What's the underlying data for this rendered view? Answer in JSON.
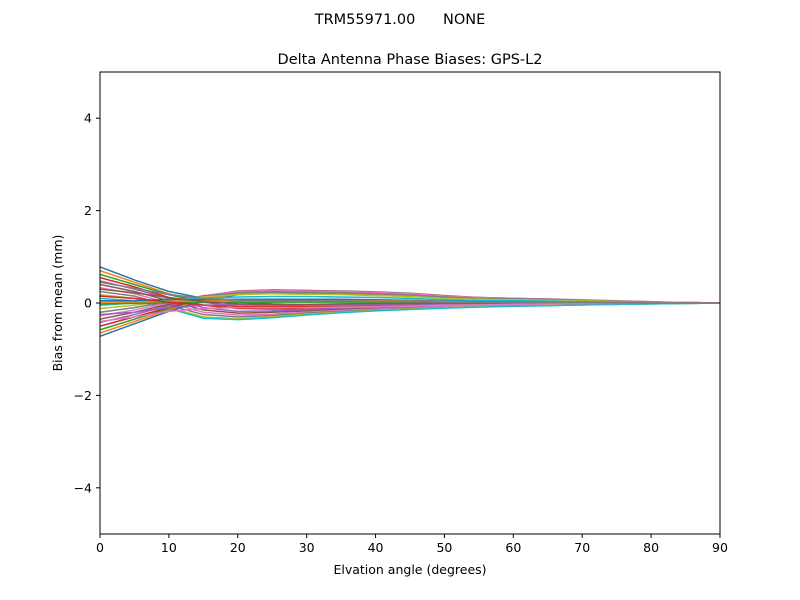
{
  "figure": {
    "suptitle": "TRM55971.00      NONE"
  },
  "chart_data": {
    "type": "line",
    "title": "Delta Antenna Phase Biases: GPS-L2",
    "xlabel": "Elvation angle (degrees)",
    "ylabel": "Bias from mean (mm)",
    "xlim": [
      0,
      90
    ],
    "ylim": [
      -5,
      5
    ],
    "xticks": [
      0,
      10,
      20,
      30,
      40,
      50,
      60,
      70,
      80,
      90
    ],
    "xtick_labels": [
      "0",
      "10",
      "20",
      "30",
      "40",
      "50",
      "60",
      "70",
      "80",
      "90"
    ],
    "yticks": [
      -4,
      -2,
      0,
      2,
      4
    ],
    "ytick_labels": [
      "−4",
      "−2",
      "0",
      "2",
      "4"
    ],
    "grid": false,
    "legend": "none",
    "x": [
      0,
      5,
      10,
      15,
      20,
      25,
      30,
      35,
      40,
      45,
      50,
      55,
      60,
      65,
      70,
      75,
      80,
      85,
      90
    ],
    "colors": [
      "#1f77b4",
      "#ff7f0e",
      "#2ca02c",
      "#d62728",
      "#9467bd",
      "#8c564b",
      "#e377c2",
      "#7f7f7f",
      "#bcbd22",
      "#17becf"
    ],
    "series": [
      {
        "values": [
          0.78,
          0.5,
          0.25,
          0.1,
          0.02,
          -0.02,
          -0.04,
          -0.03,
          -0.02,
          -0.01,
          -0.01,
          0,
          0,
          0,
          0,
          0,
          0,
          0,
          0
        ]
      },
      {
        "values": [
          0.7,
          0.45,
          0.2,
          0.05,
          -0.03,
          -0.06,
          -0.07,
          -0.06,
          -0.05,
          -0.04,
          -0.03,
          -0.02,
          -0.02,
          -0.01,
          -0.01,
          0,
          0,
          0,
          0
        ]
      },
      {
        "values": [
          0.62,
          0.4,
          0.18,
          0.02,
          -0.08,
          -0.1,
          -0.1,
          -0.08,
          -0.06,
          -0.05,
          -0.04,
          -0.03,
          -0.02,
          -0.02,
          -0.01,
          -0.01,
          0,
          0,
          0
        ]
      },
      {
        "values": [
          0.55,
          0.35,
          0.12,
          -0.05,
          -0.12,
          -0.13,
          -0.12,
          -0.1,
          -0.08,
          -0.06,
          -0.05,
          -0.04,
          -0.03,
          -0.02,
          -0.01,
          -0.01,
          0,
          0,
          0
        ]
      },
      {
        "values": [
          0.48,
          0.3,
          0.1,
          -0.1,
          -0.18,
          -0.17,
          -0.14,
          -0.12,
          -0.1,
          -0.08,
          -0.06,
          -0.05,
          -0.04,
          -0.03,
          -0.02,
          -0.01,
          -0.01,
          0,
          0
        ]
      },
      {
        "values": [
          0.4,
          0.25,
          0.05,
          -0.15,
          -0.22,
          -0.2,
          -0.17,
          -0.14,
          -0.12,
          -0.1,
          -0.07,
          -0.06,
          -0.05,
          -0.04,
          -0.03,
          -0.02,
          -0.01,
          0,
          0
        ]
      },
      {
        "values": [
          0.33,
          0.2,
          0.0,
          -0.2,
          -0.26,
          -0.24,
          -0.2,
          -0.16,
          -0.13,
          -0.11,
          -0.08,
          -0.07,
          -0.06,
          -0.05,
          -0.03,
          -0.02,
          -0.01,
          0,
          0
        ]
      },
      {
        "values": [
          0.25,
          0.15,
          -0.05,
          -0.25,
          -0.3,
          -0.27,
          -0.22,
          -0.18,
          -0.15,
          -0.12,
          -0.1,
          -0.08,
          -0.06,
          -0.05,
          -0.04,
          -0.03,
          -0.02,
          -0.01,
          0
        ]
      },
      {
        "values": [
          0.18,
          0.1,
          -0.1,
          -0.3,
          -0.34,
          -0.3,
          -0.24,
          -0.2,
          -0.16,
          -0.13,
          -0.1,
          -0.08,
          -0.07,
          -0.05,
          -0.04,
          -0.03,
          -0.02,
          -0.01,
          0
        ]
      },
      {
        "values": [
          0.1,
          0.05,
          -0.12,
          -0.33,
          -0.36,
          -0.32,
          -0.26,
          -0.21,
          -0.17,
          -0.14,
          -0.11,
          -0.09,
          -0.07,
          -0.06,
          -0.04,
          -0.03,
          -0.02,
          -0.01,
          0
        ]
      },
      {
        "values": [
          -0.72,
          -0.45,
          -0.18,
          0.05,
          0.18,
          0.22,
          0.21,
          0.19,
          0.17,
          0.14,
          0.11,
          0.08,
          0.06,
          0.04,
          0.03,
          0.02,
          0.01,
          0,
          0
        ]
      },
      {
        "values": [
          -0.65,
          -0.4,
          -0.15,
          0.08,
          0.2,
          0.24,
          0.23,
          0.21,
          0.19,
          0.16,
          0.12,
          0.09,
          0.07,
          0.05,
          0.03,
          0.02,
          0.01,
          0,
          0
        ]
      },
      {
        "values": [
          -0.58,
          -0.35,
          -0.12,
          0.1,
          0.22,
          0.26,
          0.25,
          0.23,
          0.21,
          0.18,
          0.13,
          0.1,
          0.08,
          0.06,
          0.04,
          0.02,
          0.01,
          0,
          0
        ]
      },
      {
        "values": [
          -0.5,
          -0.3,
          -0.1,
          0.12,
          0.24,
          0.27,
          0.26,
          0.24,
          0.22,
          0.19,
          0.14,
          0.11,
          0.09,
          0.07,
          0.05,
          0.03,
          0.02,
          0.01,
          0
        ]
      },
      {
        "values": [
          -0.42,
          -0.25,
          -0.06,
          0.14,
          0.25,
          0.28,
          0.27,
          0.25,
          0.23,
          0.2,
          0.15,
          0.12,
          0.1,
          0.08,
          0.05,
          0.03,
          0.02,
          0.01,
          0
        ]
      },
      {
        "values": [
          -0.35,
          -0.2,
          -0.03,
          0.15,
          0.26,
          0.28,
          0.27,
          0.26,
          0.24,
          0.21,
          0.16,
          0.12,
          0.1,
          0.08,
          0.06,
          0.04,
          0.02,
          0.01,
          0
        ]
      },
      {
        "values": [
          -0.28,
          -0.15,
          0.0,
          0.16,
          0.25,
          0.27,
          0.26,
          0.25,
          0.23,
          0.2,
          0.15,
          0.12,
          0.1,
          0.09,
          0.07,
          0.05,
          0.03,
          0.01,
          0
        ]
      },
      {
        "values": [
          -0.2,
          -0.1,
          0.03,
          0.15,
          0.22,
          0.24,
          0.23,
          0.22,
          0.2,
          0.17,
          0.13,
          0.1,
          0.09,
          0.08,
          0.06,
          0.04,
          0.02,
          0.01,
          0
        ]
      },
      {
        "values": [
          -0.12,
          -0.05,
          0.05,
          0.13,
          0.18,
          0.2,
          0.19,
          0.18,
          0.16,
          0.14,
          0.1,
          0.08,
          0.07,
          0.06,
          0.05,
          0.03,
          0.02,
          0.01,
          0
        ]
      },
      {
        "values": [
          -0.05,
          0.0,
          0.07,
          0.1,
          0.13,
          0.14,
          0.14,
          0.13,
          0.12,
          0.1,
          0.07,
          0.05,
          0.05,
          0.04,
          0.03,
          0.02,
          0.01,
          0,
          0
        ]
      },
      {
        "values": [
          0.05,
          0.05,
          0.08,
          0.07,
          0.08,
          0.08,
          0.08,
          0.08,
          0.07,
          0.06,
          0.04,
          0.03,
          0.03,
          0.02,
          0.02,
          0.01,
          0.01,
          0,
          0
        ]
      },
      {
        "values": [
          0.02,
          0.02,
          0.04,
          0.04,
          0.05,
          0.05,
          0.05,
          0.05,
          0.05,
          0.04,
          0.03,
          0.02,
          0.02,
          0.02,
          0.01,
          0.01,
          0,
          0,
          0
        ]
      },
      {
        "values": [
          -0.02,
          -0.01,
          0.0,
          0.01,
          0.01,
          0.02,
          0.02,
          0.02,
          0.02,
          0.02,
          0.01,
          0.01,
          0.01,
          0.01,
          0,
          0,
          0,
          0,
          0
        ]
      },
      {
        "values": [
          0.15,
          0.1,
          0.02,
          -0.04,
          -0.07,
          -0.08,
          -0.07,
          -0.06,
          -0.05,
          -0.04,
          -0.03,
          -0.02,
          -0.02,
          -0.01,
          -0.01,
          0,
          0,
          0,
          0
        ]
      },
      {
        "values": [
          -0.25,
          -0.2,
          -0.1,
          -0.05,
          -0.03,
          -0.04,
          -0.05,
          -0.05,
          -0.04,
          -0.04,
          -0.03,
          -0.02,
          -0.02,
          -0.01,
          -0.01,
          0,
          0,
          0,
          0
        ]
      },
      {
        "values": [
          0.3,
          0.22,
          0.12,
          0.03,
          -0.02,
          -0.03,
          -0.03,
          -0.02,
          -0.01,
          -0.01,
          0,
          0,
          0,
          0,
          0,
          0,
          0,
          0,
          0
        ]
      },
      {
        "values": [
          -0.4,
          -0.3,
          -0.18,
          -0.12,
          -0.1,
          -0.1,
          -0.1,
          -0.09,
          -0.08,
          -0.07,
          -0.05,
          -0.04,
          -0.03,
          -0.02,
          -0.01,
          -0.01,
          0,
          0,
          0
        ]
      },
      {
        "values": [
          0.45,
          0.32,
          0.18,
          0.1,
          0.06,
          0.05,
          0.05,
          0.05,
          0.04,
          0.03,
          0.02,
          0.02,
          0.01,
          0.01,
          0.01,
          0,
          0,
          0,
          0
        ]
      }
    ]
  }
}
